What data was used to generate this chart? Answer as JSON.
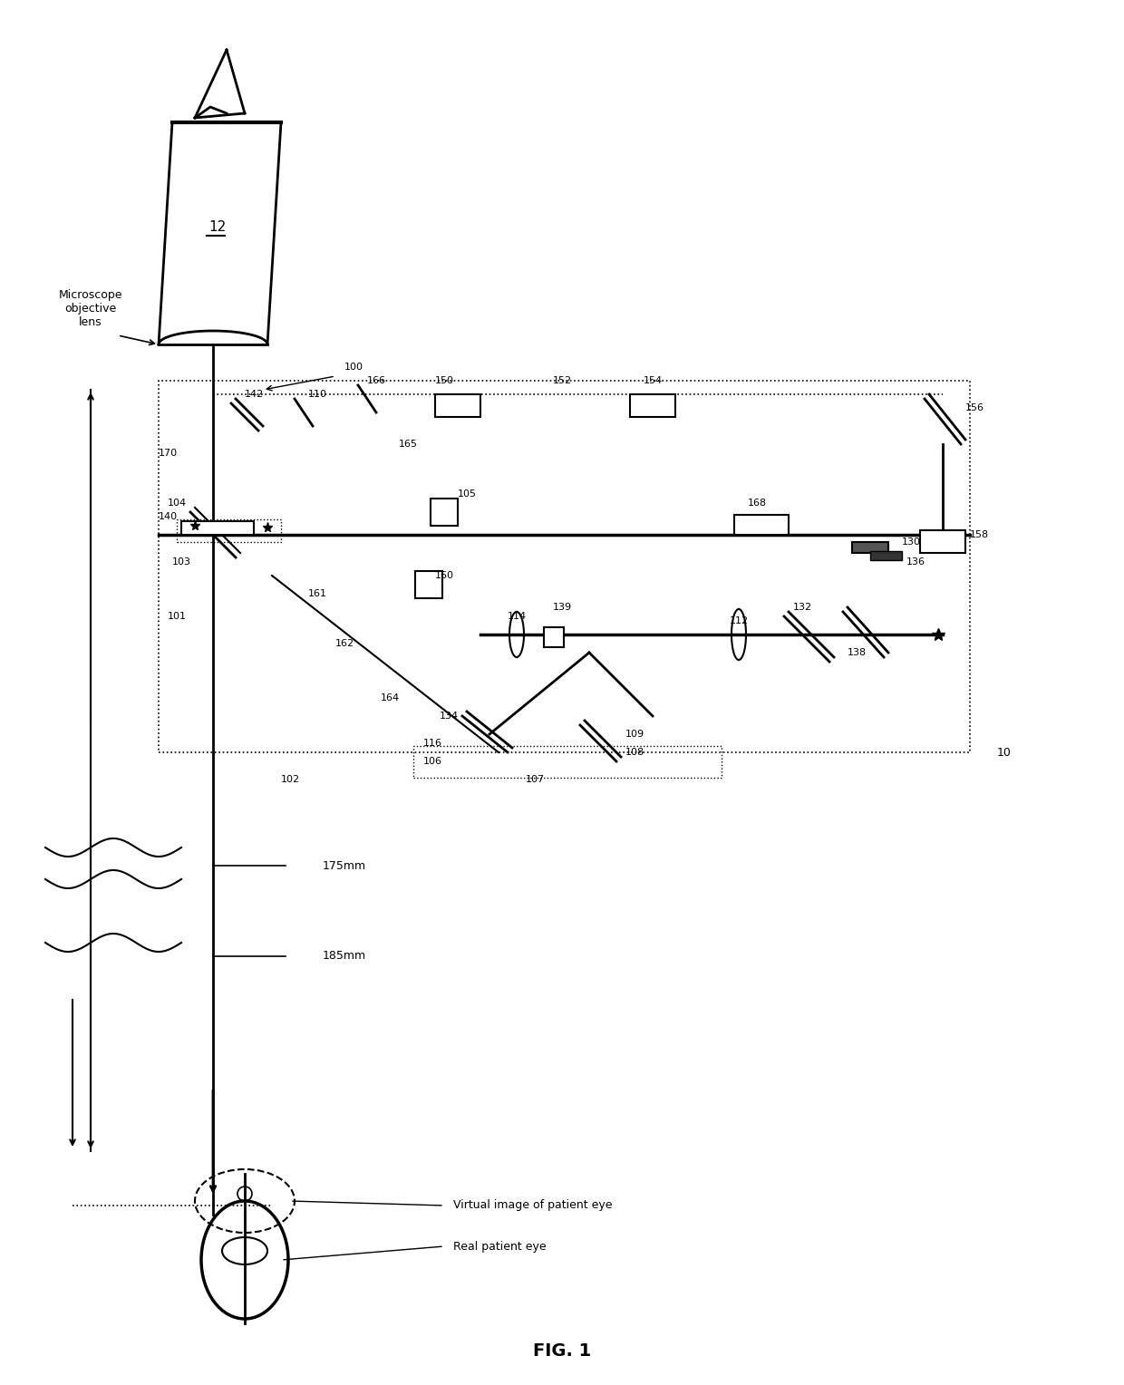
{
  "title": "FIG. 1",
  "background_color": "#ffffff",
  "fig_width": 12.4,
  "fig_height": 15.28,
  "labels": {
    "microscope_objective_lens": "Microscope\nobjective\nlens",
    "num_12": "12",
    "num_100": "100",
    "num_142": "142",
    "num_110": "110",
    "num_166": "166",
    "num_150": "150",
    "num_152": "152",
    "num_154": "154",
    "num_156": "156",
    "num_165": "165",
    "num_170": "170",
    "num_104": "104",
    "num_140": "140",
    "num_103": "103",
    "num_101": "101",
    "num_105": "105",
    "num_160": "160",
    "num_161": "161",
    "num_162": "162",
    "num_164": "164",
    "num_134": "134",
    "num_116": "116",
    "num_106": "106",
    "num_107": "107",
    "num_108": "108",
    "num_109": "109",
    "num_112": "112",
    "num_114": "114",
    "num_139": "139",
    "num_168": "168",
    "num_158": "158",
    "num_130": "130",
    "num_136": "136",
    "num_132": "132",
    "num_138": "138",
    "num_102": "102",
    "num_175mm": "175mm",
    "num_185mm": "185mm",
    "num_10": "10",
    "virtual_image": "Virtual image of patient eye",
    "real_eye": "Real patient eye"
  }
}
